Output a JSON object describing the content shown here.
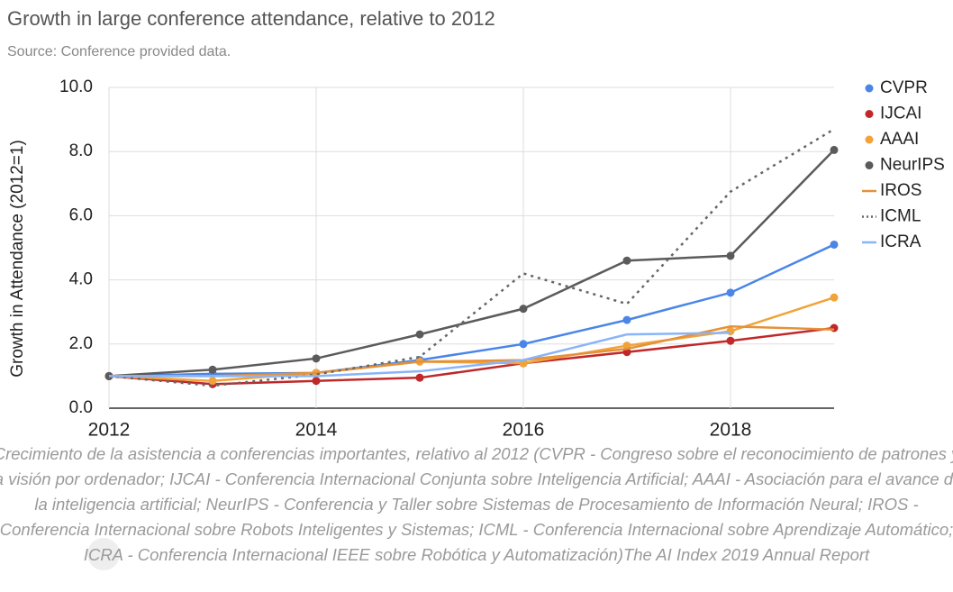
{
  "chart_data": {
    "type": "line",
    "title": "Growth in large conference attendance, relative to 2012",
    "subtitle": "Source: Conference provided data.",
    "y_label": "Growth in Attendance (2012=1)",
    "x": [
      2012,
      2013,
      2014,
      2015,
      2016,
      2017,
      2018,
      2019
    ],
    "xlim": [
      2012,
      2019
    ],
    "xticks": [
      2012,
      2014,
      2016,
      2018
    ],
    "ylim": [
      0,
      10
    ],
    "yticks": [
      {
        "value": 0,
        "label": "0.0"
      },
      {
        "value": 2,
        "label": "2.0"
      },
      {
        "value": 4,
        "label": "4.0"
      },
      {
        "value": 6,
        "label": "6.0"
      },
      {
        "value": 8,
        "label": "8.0"
      },
      {
        "value": 10,
        "label": "10.0"
      }
    ],
    "grid": true,
    "legend": "right",
    "series": [
      {
        "name": "CVPR",
        "color": "#4a86e8",
        "marker": true,
        "dash": "solid",
        "values": [
          1,
          1.07,
          1.1,
          1.5,
          2.0,
          2.75,
          3.6,
          5.1
        ]
      },
      {
        "name": "IJCAI",
        "color": "#c0282a",
        "marker": true,
        "dash": "solid",
        "values": [
          1,
          0.75,
          0.85,
          0.95,
          1.4,
          1.75,
          2.1,
          2.5
        ]
      },
      {
        "name": "AAAI",
        "color": "#f1a33a",
        "marker": true,
        "dash": "solid",
        "values": [
          1,
          0.85,
          1.1,
          1.45,
          1.4,
          1.95,
          2.4,
          3.45
        ]
      },
      {
        "name": "NeurIPS",
        "color": "#5b5b5b",
        "marker": true,
        "dash": "solid",
        "values": [
          1,
          1.2,
          1.55,
          2.3,
          3.1,
          4.6,
          4.75,
          8.05
        ]
      },
      {
        "name": "IROS",
        "color": "#e69138",
        "marker": false,
        "dash": "solid",
        "values": [
          1,
          1.0,
          1.1,
          1.45,
          1.5,
          1.85,
          2.55,
          2.45
        ]
      },
      {
        "name": "ICML",
        "color": "#666666",
        "marker": false,
        "dash": "dotted",
        "values": [
          1,
          0.7,
          1.05,
          1.6,
          4.2,
          3.25,
          6.75,
          8.7
        ]
      },
      {
        "name": "ICRA",
        "color": "#8ab4f8",
        "marker": false,
        "dash": "solid",
        "values": [
          1,
          1.0,
          1.0,
          1.15,
          1.5,
          2.3,
          2.35,
          null
        ]
      }
    ]
  },
  "caption": "Crecimiento de la asistencia a conferencias importantes, relativo al 2012 (CVPR - Congreso sobre el reconocimiento de patrones y la visión por ordenador; IJCAI - Conferencia Internacional Conjunta sobre Inteligencia Artificial; AAAI - Asociación para el avance de la inteligencia artificial; NeurIPS - Conferencia y Taller sobre Sistemas de Procesamiento de Información Neural; IROS - Conferencia Internacional sobre Robots Inteligentes y Sistemas; ICML - Conferencia Internacional sobre Aprendizaje Automático; ICRA - Conferencia Internacional IEEE sobre Robótica y Automatización)The AI Index 2019 Annual Report"
}
